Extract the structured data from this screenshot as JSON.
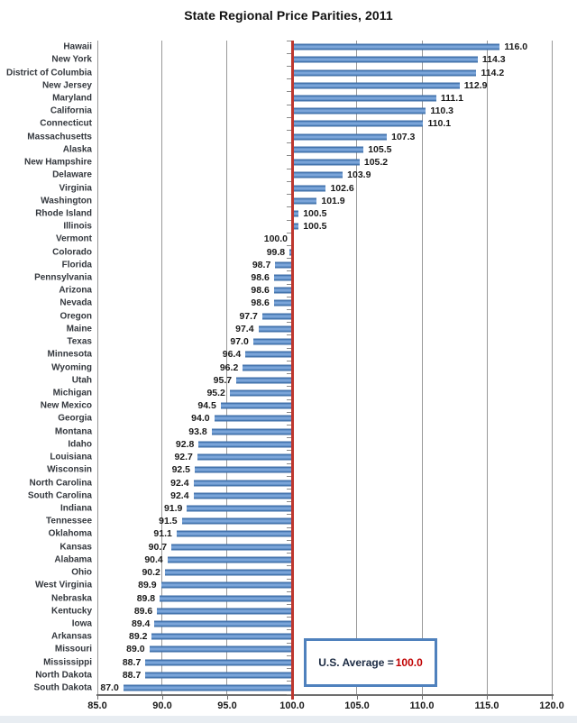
{
  "chart_data": {
    "type": "bar",
    "orientation": "horizontal",
    "title": "State Regional Price Parities, 2011",
    "categories": [
      "Hawaii",
      "New York",
      "District of Columbia",
      "New Jersey",
      "Maryland",
      "California",
      "Connecticut",
      "Massachusetts",
      "Alaska",
      "New Hampshire",
      "Delaware",
      "Virginia",
      "Washington",
      "Rhode Island",
      "Illinois",
      "Vermont",
      "Colorado",
      "Florida",
      "Pennsylvania",
      "Arizona",
      "Nevada",
      "Oregon",
      "Maine",
      "Texas",
      "Minnesota",
      "Wyoming",
      "Utah",
      "Michigan",
      "New Mexico",
      "Georgia",
      "Montana",
      "Idaho",
      "Louisiana",
      "Wisconsin",
      "North Carolina",
      "South Carolina",
      "Indiana",
      "Tennessee",
      "Oklahoma",
      "Kansas",
      "Alabama",
      "Ohio",
      "West Virginia",
      "Nebraska",
      "Kentucky",
      "Iowa",
      "Arkansas",
      "Missouri",
      "Mississippi",
      "North Dakota",
      "South Dakota"
    ],
    "values": [
      116.0,
      114.3,
      114.2,
      112.9,
      111.1,
      110.3,
      110.1,
      107.3,
      105.5,
      105.2,
      103.9,
      102.6,
      101.9,
      100.5,
      100.5,
      100.0,
      99.8,
      98.7,
      98.6,
      98.6,
      98.6,
      97.7,
      97.4,
      97.0,
      96.4,
      96.2,
      95.7,
      95.2,
      94.5,
      94.0,
      93.8,
      92.8,
      92.7,
      92.5,
      92.4,
      92.4,
      91.9,
      91.5,
      91.1,
      90.7,
      90.4,
      90.2,
      89.9,
      89.8,
      89.6,
      89.4,
      89.2,
      89.0,
      88.7,
      88.7,
      87.0
    ],
    "xlim": [
      85,
      120
    ],
    "x_tick_values": [
      85,
      90,
      95,
      100,
      105,
      110,
      115,
      120
    ],
    "x_tick_labels": [
      "85.0",
      "90.0",
      "95.0",
      "100.0",
      "105.0",
      "110.0",
      "115.0",
      "120.0"
    ],
    "grid": true,
    "bar_baseline": 100,
    "value_label_decimals": 1,
    "legend_position": "bottom-right-inside",
    "reference_line": {
      "value": 100
    },
    "annotation": {
      "prefix": "U.S. Average = ",
      "value": "100.0"
    },
    "colors": {
      "bar": "#4f81bd",
      "reference_line": "#bd372e",
      "legend_border": "#4f81bd",
      "annotation_value": "#c00000",
      "gridline": "#999999",
      "axis": "#6e6e6e",
      "text": "#1a1a1a"
    }
  }
}
